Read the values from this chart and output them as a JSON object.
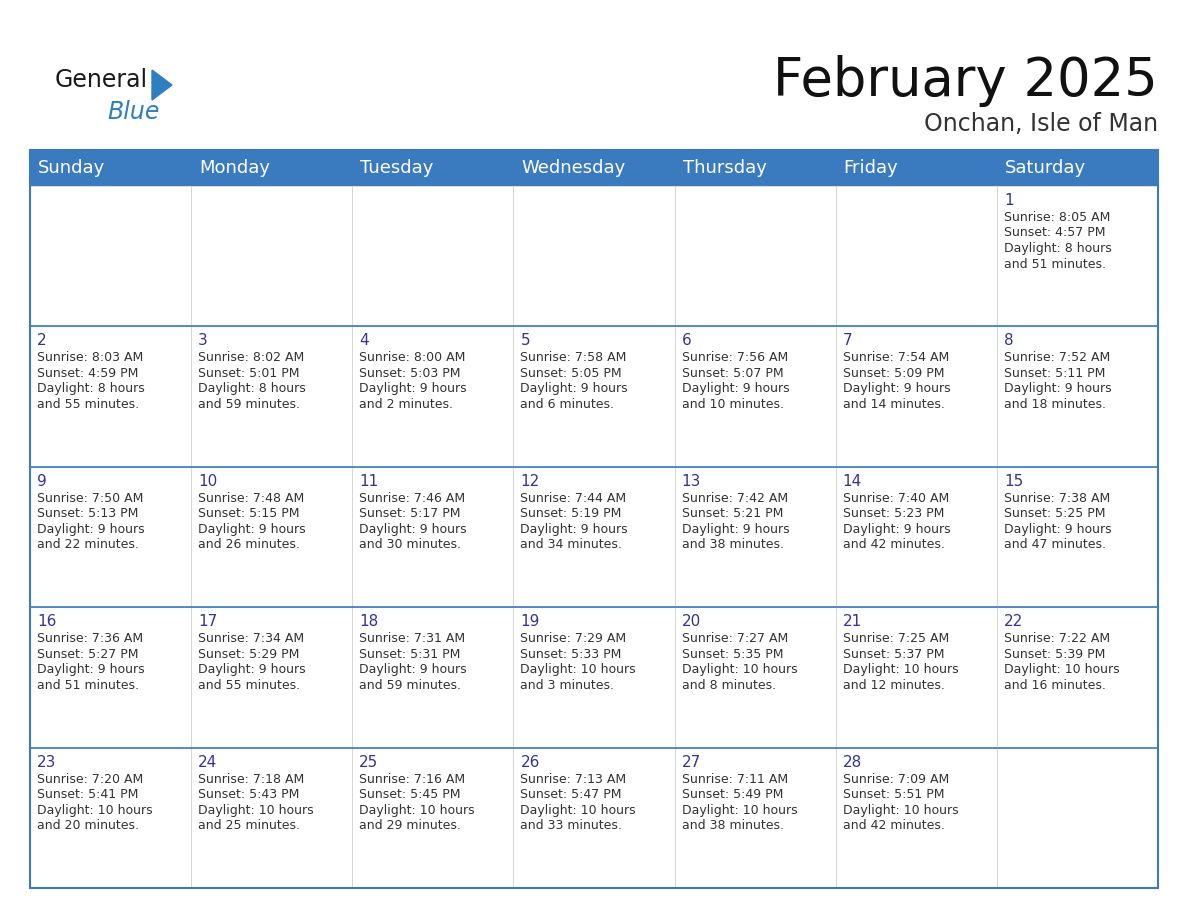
{
  "title": "February 2025",
  "subtitle": "Onchan, Isle of Man",
  "header_color": "#3a7abf",
  "header_text_color": "#ffffff",
  "border_color": "#3a7abf",
  "row_separator_color": "#3a7abf",
  "cell_border_color": "#cccccc",
  "day_num_color": "#333399",
  "text_color": "#333333",
  "bg_color": "#ffffff",
  "day_headers": [
    "Sunday",
    "Monday",
    "Tuesday",
    "Wednesday",
    "Thursday",
    "Friday",
    "Saturday"
  ],
  "title_fontsize": 38,
  "subtitle_fontsize": 17,
  "header_fontsize": 13,
  "day_num_fontsize": 11,
  "cell_fontsize": 9,
  "logo_general_color": "#1a1a1a",
  "logo_blue_color": "#2e7fc0",
  "calendar_data": {
    "1": {
      "col": 6,
      "row": 0,
      "sunrise": "8:05 AM",
      "sunset": "4:57 PM",
      "daylight_hours": 8,
      "daylight_minutes": 51
    },
    "2": {
      "col": 0,
      "row": 1,
      "sunrise": "8:03 AM",
      "sunset": "4:59 PM",
      "daylight_hours": 8,
      "daylight_minutes": 55
    },
    "3": {
      "col": 1,
      "row": 1,
      "sunrise": "8:02 AM",
      "sunset": "5:01 PM",
      "daylight_hours": 8,
      "daylight_minutes": 59
    },
    "4": {
      "col": 2,
      "row": 1,
      "sunrise": "8:00 AM",
      "sunset": "5:03 PM",
      "daylight_hours": 9,
      "daylight_minutes": 2
    },
    "5": {
      "col": 3,
      "row": 1,
      "sunrise": "7:58 AM",
      "sunset": "5:05 PM",
      "daylight_hours": 9,
      "daylight_minutes": 6
    },
    "6": {
      "col": 4,
      "row": 1,
      "sunrise": "7:56 AM",
      "sunset": "5:07 PM",
      "daylight_hours": 9,
      "daylight_minutes": 10
    },
    "7": {
      "col": 5,
      "row": 1,
      "sunrise": "7:54 AM",
      "sunset": "5:09 PM",
      "daylight_hours": 9,
      "daylight_minutes": 14
    },
    "8": {
      "col": 6,
      "row": 1,
      "sunrise": "7:52 AM",
      "sunset": "5:11 PM",
      "daylight_hours": 9,
      "daylight_minutes": 18
    },
    "9": {
      "col": 0,
      "row": 2,
      "sunrise": "7:50 AM",
      "sunset": "5:13 PM",
      "daylight_hours": 9,
      "daylight_minutes": 22
    },
    "10": {
      "col": 1,
      "row": 2,
      "sunrise": "7:48 AM",
      "sunset": "5:15 PM",
      "daylight_hours": 9,
      "daylight_minutes": 26
    },
    "11": {
      "col": 2,
      "row": 2,
      "sunrise": "7:46 AM",
      "sunset": "5:17 PM",
      "daylight_hours": 9,
      "daylight_minutes": 30
    },
    "12": {
      "col": 3,
      "row": 2,
      "sunrise": "7:44 AM",
      "sunset": "5:19 PM",
      "daylight_hours": 9,
      "daylight_minutes": 34
    },
    "13": {
      "col": 4,
      "row": 2,
      "sunrise": "7:42 AM",
      "sunset": "5:21 PM",
      "daylight_hours": 9,
      "daylight_minutes": 38
    },
    "14": {
      "col": 5,
      "row": 2,
      "sunrise": "7:40 AM",
      "sunset": "5:23 PM",
      "daylight_hours": 9,
      "daylight_minutes": 42
    },
    "15": {
      "col": 6,
      "row": 2,
      "sunrise": "7:38 AM",
      "sunset": "5:25 PM",
      "daylight_hours": 9,
      "daylight_minutes": 47
    },
    "16": {
      "col": 0,
      "row": 3,
      "sunrise": "7:36 AM",
      "sunset": "5:27 PM",
      "daylight_hours": 9,
      "daylight_minutes": 51
    },
    "17": {
      "col": 1,
      "row": 3,
      "sunrise": "7:34 AM",
      "sunset": "5:29 PM",
      "daylight_hours": 9,
      "daylight_minutes": 55
    },
    "18": {
      "col": 2,
      "row": 3,
      "sunrise": "7:31 AM",
      "sunset": "5:31 PM",
      "daylight_hours": 9,
      "daylight_minutes": 59
    },
    "19": {
      "col": 3,
      "row": 3,
      "sunrise": "7:29 AM",
      "sunset": "5:33 PM",
      "daylight_hours": 10,
      "daylight_minutes": 3
    },
    "20": {
      "col": 4,
      "row": 3,
      "sunrise": "7:27 AM",
      "sunset": "5:35 PM",
      "daylight_hours": 10,
      "daylight_minutes": 8
    },
    "21": {
      "col": 5,
      "row": 3,
      "sunrise": "7:25 AM",
      "sunset": "5:37 PM",
      "daylight_hours": 10,
      "daylight_minutes": 12
    },
    "22": {
      "col": 6,
      "row": 3,
      "sunrise": "7:22 AM",
      "sunset": "5:39 PM",
      "daylight_hours": 10,
      "daylight_minutes": 16
    },
    "23": {
      "col": 0,
      "row": 4,
      "sunrise": "7:20 AM",
      "sunset": "5:41 PM",
      "daylight_hours": 10,
      "daylight_minutes": 20
    },
    "24": {
      "col": 1,
      "row": 4,
      "sunrise": "7:18 AM",
      "sunset": "5:43 PM",
      "daylight_hours": 10,
      "daylight_minutes": 25
    },
    "25": {
      "col": 2,
      "row": 4,
      "sunrise": "7:16 AM",
      "sunset": "5:45 PM",
      "daylight_hours": 10,
      "daylight_minutes": 29
    },
    "26": {
      "col": 3,
      "row": 4,
      "sunrise": "7:13 AM",
      "sunset": "5:47 PM",
      "daylight_hours": 10,
      "daylight_minutes": 33
    },
    "27": {
      "col": 4,
      "row": 4,
      "sunrise": "7:11 AM",
      "sunset": "5:49 PM",
      "daylight_hours": 10,
      "daylight_minutes": 38
    },
    "28": {
      "col": 5,
      "row": 4,
      "sunrise": "7:09 AM",
      "sunset": "5:51 PM",
      "daylight_hours": 10,
      "daylight_minutes": 42
    }
  }
}
